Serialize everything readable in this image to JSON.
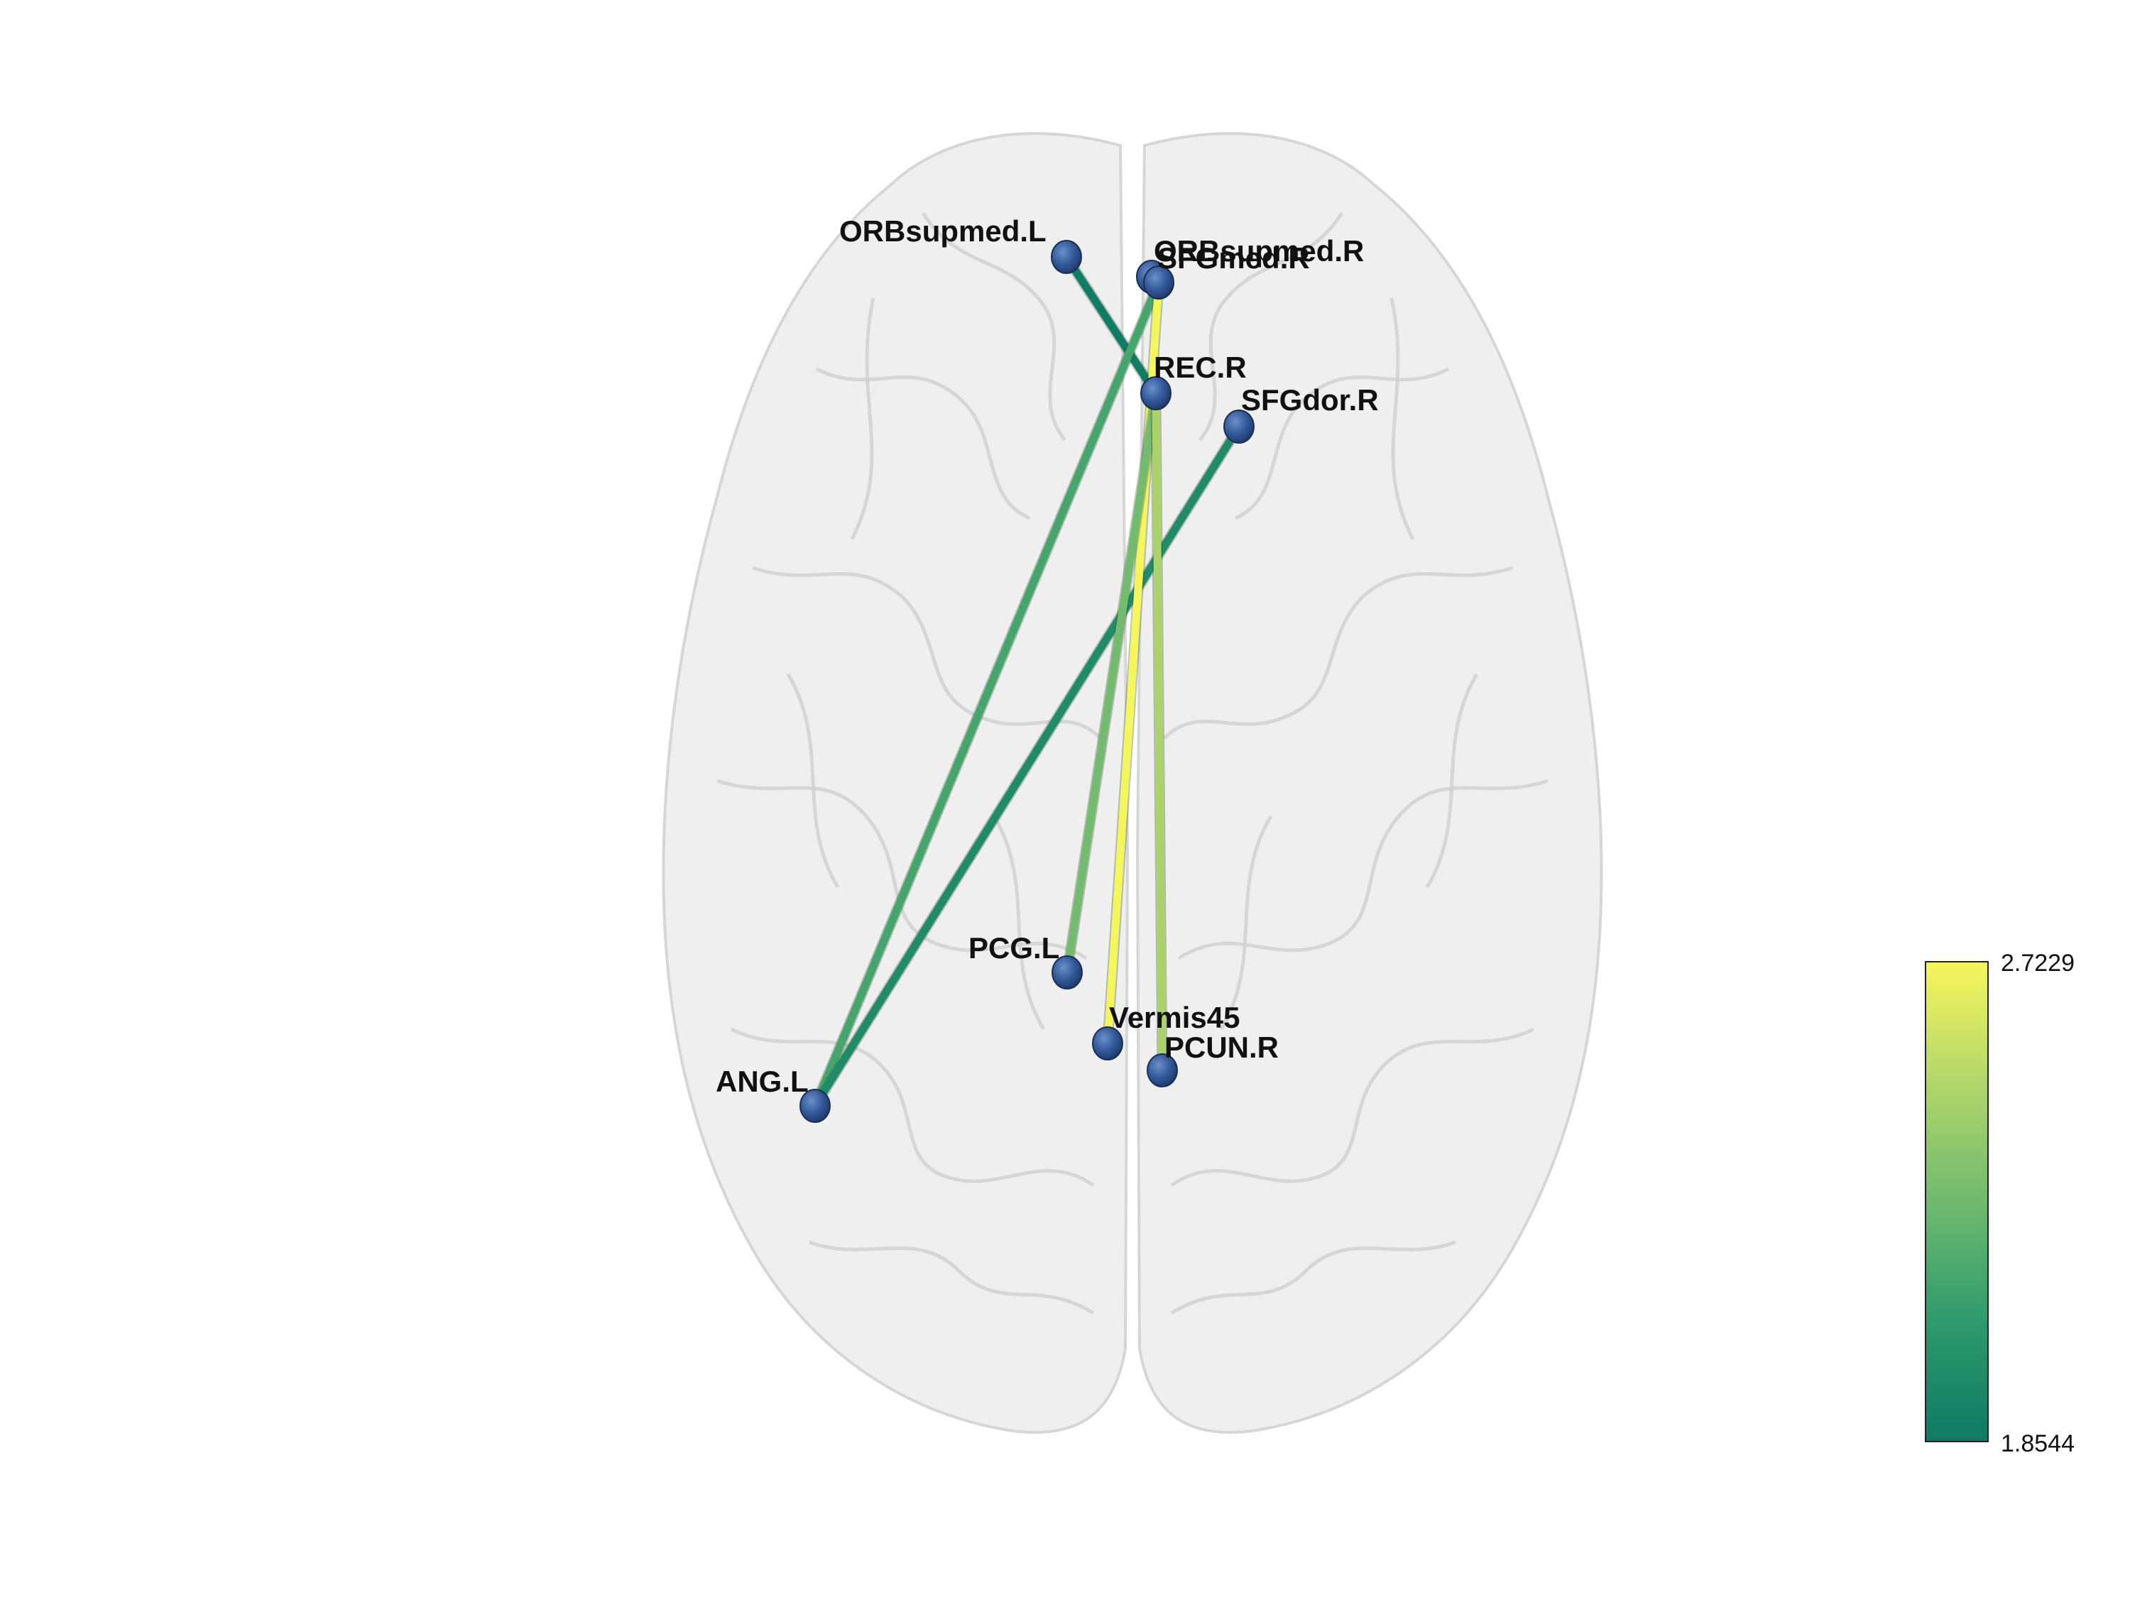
{
  "figure": {
    "type": "brain-connectivity-axial",
    "colormap": [
      "#0e7a64",
      "#2e9a6c",
      "#6fba6e",
      "#b3d66a",
      "#f6f65c"
    ]
  },
  "colorbar": {
    "max_label": "2.7229",
    "min_label": "1.8544",
    "max": 2.7229,
    "min": 1.8544
  },
  "nodes": [
    {
      "id": "ORBsupmed.L",
      "label": "ORBsupmed.L"
    },
    {
      "id": "ORBsupmed.R",
      "label": "ORBsupmed.R"
    },
    {
      "id": "SFGmed.R",
      "label": "SFGmed.R"
    },
    {
      "id": "REC.R",
      "label": "REC.R"
    },
    {
      "id": "SFGdor.R",
      "label": "SFGdor.R"
    },
    {
      "id": "PCG.L",
      "label": "PCG.L"
    },
    {
      "id": "Vermis45",
      "label": "Vermis45"
    },
    {
      "id": "PCUN.R",
      "label": "PCUN.R"
    },
    {
      "id": "ANG.L",
      "label": "ANG.L"
    }
  ],
  "edges": [
    {
      "source": "ORBsupmed.L",
      "target": "REC.R",
      "weight": 1.87
    },
    {
      "source": "SFGmed.R",
      "target": "ANG.L",
      "weight": 2.15
    },
    {
      "source": "SFGdor.R",
      "target": "ANG.L",
      "weight": 1.97
    },
    {
      "source": "SFGmed.R",
      "target": "Vermis45",
      "weight": 2.72
    },
    {
      "source": "REC.R",
      "target": "PCG.L",
      "weight": 2.3
    },
    {
      "source": "REC.R",
      "target": "PCUN.R",
      "weight": 2.48
    }
  ]
}
